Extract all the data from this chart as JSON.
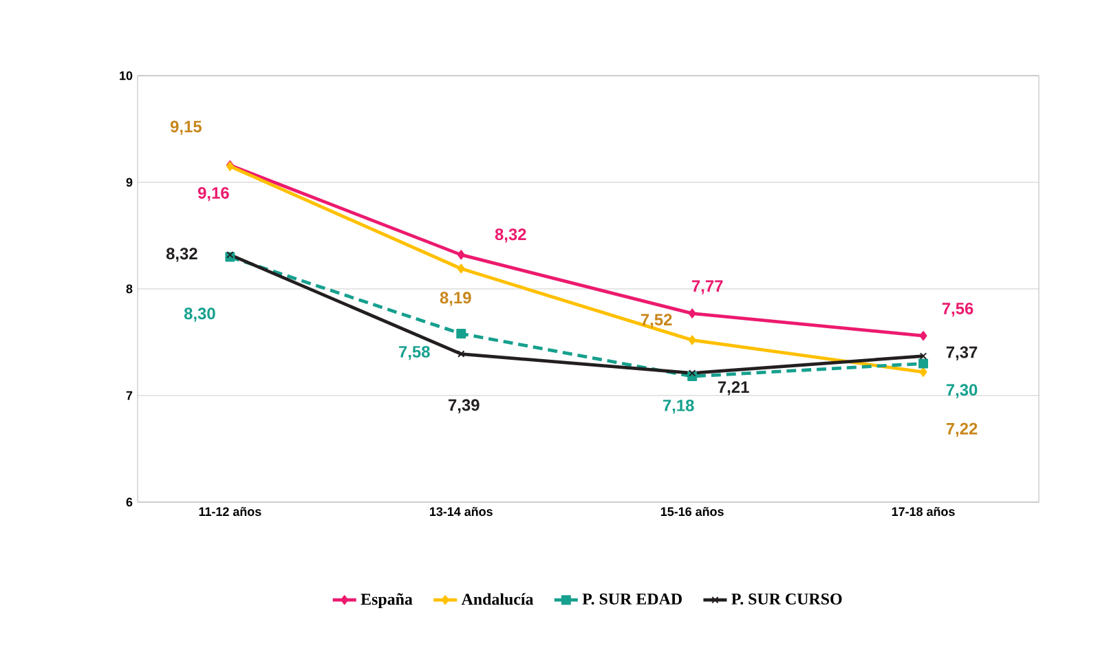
{
  "chart_data": {
    "type": "line",
    "categories": [
      "11-12 años",
      "13-14 años",
      "15-16 años",
      "17-18 años"
    ],
    "series": [
      {
        "name": "España",
        "color": "#ec1a6e",
        "values": [
          9.16,
          8.32,
          7.77,
          7.56
        ],
        "value_labels": [
          "9,16",
          "8,32",
          "7,77",
          "7,56"
        ],
        "marker": "diamond",
        "line_style": "solid"
      },
      {
        "name": "Andalucía",
        "color": "#ffc000",
        "values": [
          9.15,
          8.19,
          7.52,
          7.22
        ],
        "value_labels": [
          "9,15",
          "8,19",
          "7,52",
          "7,22"
        ],
        "marker": "diamond",
        "line_style": "solid"
      },
      {
        "name": "P. SUR EDAD",
        "color": "#16a08e",
        "values": [
          8.3,
          7.58,
          7.18,
          7.3
        ],
        "value_labels": [
          "8,30",
          "7,58",
          "7,18",
          "7,30"
        ],
        "marker": "square",
        "line_style": "dashed"
      },
      {
        "name": "P. SUR CURSO",
        "color": "#231f20",
        "values": [
          8.32,
          7.39,
          7.21,
          7.37
        ],
        "value_labels": [
          "8,32",
          "7,39",
          "7,21",
          "7,37"
        ],
        "marker": "cross",
        "line_style": "solid"
      }
    ],
    "ylim": [
      6,
      10
    ],
    "yticks": [
      6,
      7,
      8,
      9,
      10
    ],
    "grid": "y",
    "legend": "bottom"
  }
}
